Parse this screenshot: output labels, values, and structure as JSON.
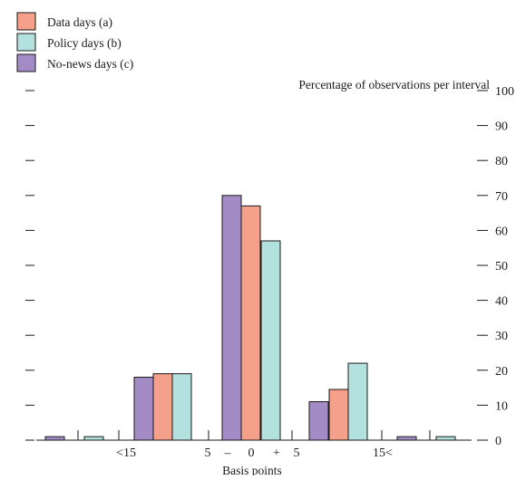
{
  "chart_data": {
    "type": "bar",
    "title": "",
    "ylabel": "Percentage of observations per interval",
    "xlabel": "Basis points",
    "ylim": [
      0,
      100
    ],
    "y_ticks": [
      "0",
      "10",
      "20",
      "30",
      "40",
      "50",
      "60",
      "70",
      "80",
      "90",
      "100"
    ],
    "x_tick_labels": [
      "<15",
      "5",
      "–",
      "0",
      "+",
      "5",
      "15<"
    ],
    "categories": [
      "< -15",
      "-15 to -5",
      "-5 to +5",
      "+5 to +15",
      "> +15"
    ],
    "series": [
      {
        "name": "Data days (a)",
        "color": "#f4a08a",
        "values": [
          0,
          19,
          67,
          14.5,
          0
        ]
      },
      {
        "name": "Policy days (b)",
        "color": "#b3e1df",
        "values": [
          1,
          19,
          57,
          22,
          1
        ]
      },
      {
        "name": "No-news days (c)",
        "color": "#a38cc6",
        "values": [
          1,
          18,
          70,
          11,
          1
        ]
      }
    ],
    "legend_position": "top-left",
    "grid": false
  }
}
